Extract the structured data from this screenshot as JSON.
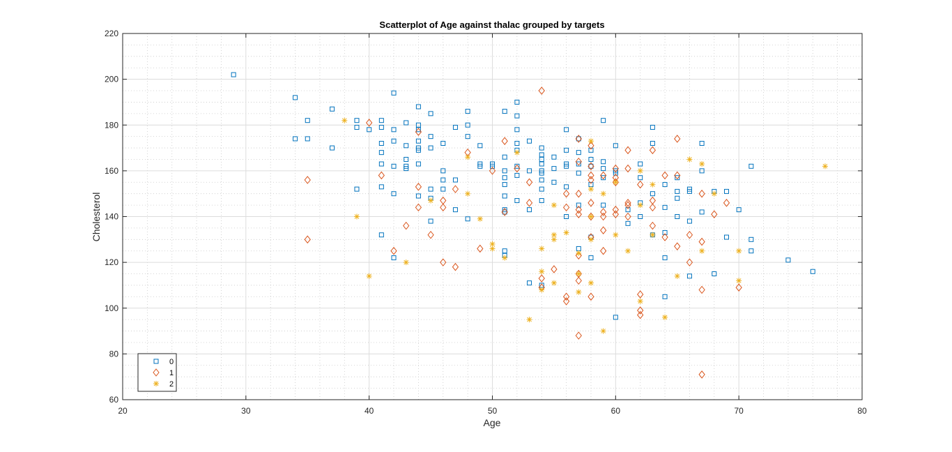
{
  "chart_data": {
    "type": "scatter",
    "title": "Scatterplot of Age against thalac grouped by targets",
    "xlabel": "Age",
    "ylabel": "Cholesterol",
    "xlim": [
      20,
      80
    ],
    "ylim": [
      60,
      220
    ],
    "xticks": [
      20,
      30,
      40,
      50,
      60,
      70,
      80
    ],
    "yticks": [
      60,
      80,
      100,
      120,
      140,
      160,
      180,
      200,
      220
    ],
    "grid": true,
    "minor_grid": true,
    "legend_position": "bottom-left",
    "series": [
      {
        "name": "0",
        "marker": "square",
        "color": "#0072BD",
        "points": [
          [
            29,
            202
          ],
          [
            34,
            192
          ],
          [
            34,
            174
          ],
          [
            35,
            182
          ],
          [
            35,
            174
          ],
          [
            37,
            187
          ],
          [
            37,
            170
          ],
          [
            39,
            182
          ],
          [
            39,
            179
          ],
          [
            39,
            152
          ],
          [
            40,
            178
          ],
          [
            41,
            182
          ],
          [
            41,
            179
          ],
          [
            41,
            172
          ],
          [
            41,
            168
          ],
          [
            41,
            163
          ],
          [
            41,
            153
          ],
          [
            41,
            132
          ],
          [
            42,
            194
          ],
          [
            42,
            178
          ],
          [
            42,
            173
          ],
          [
            42,
            162
          ],
          [
            42,
            150
          ],
          [
            42,
            122
          ],
          [
            43,
            181
          ],
          [
            43,
            171
          ],
          [
            43,
            165
          ],
          [
            43,
            162
          ],
          [
            43,
            161
          ],
          [
            44,
            188
          ],
          [
            44,
            180
          ],
          [
            44,
            178
          ],
          [
            44,
            173
          ],
          [
            44,
            170
          ],
          [
            44,
            169
          ],
          [
            44,
            163
          ],
          [
            44,
            149
          ],
          [
            45,
            185
          ],
          [
            45,
            175
          ],
          [
            45,
            170
          ],
          [
            45,
            152
          ],
          [
            45,
            148
          ],
          [
            45,
            138
          ],
          [
            46,
            172
          ],
          [
            46,
            160
          ],
          [
            46,
            156
          ],
          [
            46,
            152
          ],
          [
            47,
            179
          ],
          [
            47,
            156
          ],
          [
            47,
            143
          ],
          [
            48,
            186
          ],
          [
            48,
            180
          ],
          [
            48,
            175
          ],
          [
            48,
            139
          ],
          [
            49,
            171
          ],
          [
            49,
            163
          ],
          [
            49,
            162
          ],
          [
            50,
            163
          ],
          [
            50,
            162
          ],
          [
            51,
            186
          ],
          [
            51,
            166
          ],
          [
            51,
            160
          ],
          [
            51,
            157
          ],
          [
            51,
            154
          ],
          [
            51,
            149
          ],
          [
            51,
            143
          ],
          [
            51,
            142
          ],
          [
            51,
            125
          ],
          [
            51,
            123
          ],
          [
            52,
            190
          ],
          [
            52,
            184
          ],
          [
            52,
            178
          ],
          [
            52,
            172
          ],
          [
            52,
            169
          ],
          [
            52,
            162
          ],
          [
            52,
            158
          ],
          [
            52,
            147
          ],
          [
            53,
            173
          ],
          [
            53,
            160
          ],
          [
            53,
            143
          ],
          [
            53,
            111
          ],
          [
            54,
            170
          ],
          [
            54,
            167
          ],
          [
            54,
            165
          ],
          [
            54,
            163
          ],
          [
            54,
            160
          ],
          [
            54,
            159
          ],
          [
            54,
            156
          ],
          [
            54,
            152
          ],
          [
            54,
            147
          ],
          [
            54,
            110
          ],
          [
            55,
            166
          ],
          [
            55,
            161
          ],
          [
            55,
            155
          ],
          [
            56,
            178
          ],
          [
            56,
            169
          ],
          [
            56,
            163
          ],
          [
            56,
            162
          ],
          [
            56,
            153
          ],
          [
            56,
            140
          ],
          [
            57,
            174
          ],
          [
            57,
            168
          ],
          [
            57,
            163
          ],
          [
            57,
            159
          ],
          [
            57,
            145
          ],
          [
            57,
            126
          ],
          [
            58,
            169
          ],
          [
            58,
            165
          ],
          [
            58,
            162
          ],
          [
            58,
            154
          ],
          [
            58,
            131
          ],
          [
            58,
            122
          ],
          [
            59,
            182
          ],
          [
            59,
            164
          ],
          [
            59,
            161
          ],
          [
            59,
            157
          ],
          [
            59,
            145
          ],
          [
            60,
            171
          ],
          [
            60,
            160
          ],
          [
            60,
            159
          ],
          [
            60,
            96
          ],
          [
            61,
            143
          ],
          [
            61,
            137
          ],
          [
            62,
            163
          ],
          [
            62,
            157
          ],
          [
            62,
            146
          ],
          [
            62,
            140
          ],
          [
            63,
            179
          ],
          [
            63,
            172
          ],
          [
            63,
            150
          ],
          [
            63,
            132
          ],
          [
            64,
            154
          ],
          [
            64,
            144
          ],
          [
            64,
            133
          ],
          [
            64,
            122
          ],
          [
            64,
            105
          ],
          [
            65,
            157
          ],
          [
            65,
            151
          ],
          [
            65,
            148
          ],
          [
            65,
            140
          ],
          [
            66,
            152
          ],
          [
            66,
            151
          ],
          [
            66,
            138
          ],
          [
            66,
            114
          ],
          [
            67,
            172
          ],
          [
            67,
            160
          ],
          [
            67,
            142
          ],
          [
            68,
            151
          ],
          [
            68,
            115
          ],
          [
            69,
            151
          ],
          [
            69,
            131
          ],
          [
            70,
            143
          ],
          [
            71,
            162
          ],
          [
            71,
            130
          ],
          [
            71,
            125
          ],
          [
            74,
            121
          ],
          [
            76,
            116
          ]
        ]
      },
      {
        "name": "1",
        "marker": "diamond",
        "color": "#D95319",
        "points": [
          [
            35,
            156
          ],
          [
            35,
            130
          ],
          [
            40,
            181
          ],
          [
            41,
            158
          ],
          [
            42,
            125
          ],
          [
            43,
            136
          ],
          [
            44,
            177
          ],
          [
            44,
            153
          ],
          [
            44,
            144
          ],
          [
            45,
            132
          ],
          [
            46,
            147
          ],
          [
            46,
            144
          ],
          [
            46,
            120
          ],
          [
            47,
            152
          ],
          [
            47,
            118
          ],
          [
            48,
            168
          ],
          [
            49,
            126
          ],
          [
            50,
            160
          ],
          [
            51,
            173
          ],
          [
            51,
            142
          ],
          [
            52,
            161
          ],
          [
            53,
            155
          ],
          [
            53,
            146
          ],
          [
            54,
            195
          ],
          [
            54,
            113
          ],
          [
            54,
            109
          ],
          [
            55,
            117
          ],
          [
            56,
            150
          ],
          [
            56,
            144
          ],
          [
            56,
            105
          ],
          [
            56,
            103
          ],
          [
            57,
            174
          ],
          [
            57,
            164
          ],
          [
            57,
            150
          ],
          [
            57,
            143
          ],
          [
            57,
            141
          ],
          [
            57,
            123
          ],
          [
            57,
            115
          ],
          [
            57,
            112
          ],
          [
            57,
            88
          ],
          [
            58,
            171
          ],
          [
            58,
            162
          ],
          [
            58,
            158
          ],
          [
            58,
            156
          ],
          [
            58,
            146
          ],
          [
            58,
            140
          ],
          [
            58,
            131
          ],
          [
            58,
            105
          ],
          [
            59,
            158
          ],
          [
            59,
            142
          ],
          [
            59,
            140
          ],
          [
            59,
            134
          ],
          [
            59,
            125
          ],
          [
            60,
            161
          ],
          [
            60,
            157
          ],
          [
            60,
            155
          ],
          [
            60,
            143
          ],
          [
            60,
            141
          ],
          [
            61,
            169
          ],
          [
            61,
            161
          ],
          [
            61,
            146
          ],
          [
            61,
            145
          ],
          [
            61,
            140
          ],
          [
            62,
            154
          ],
          [
            62,
            106
          ],
          [
            62,
            99
          ],
          [
            62,
            97
          ],
          [
            63,
            169
          ],
          [
            63,
            147
          ],
          [
            63,
            144
          ],
          [
            63,
            136
          ],
          [
            64,
            158
          ],
          [
            64,
            131
          ],
          [
            65,
            174
          ],
          [
            65,
            158
          ],
          [
            65,
            127
          ],
          [
            66,
            132
          ],
          [
            66,
            120
          ],
          [
            67,
            150
          ],
          [
            67,
            129
          ],
          [
            67,
            108
          ],
          [
            67,
            71
          ],
          [
            68,
            141
          ],
          [
            69,
            146
          ],
          [
            70,
            109
          ]
        ]
      },
      {
        "name": "2",
        "marker": "asterisk",
        "color": "#EDB120",
        "points": [
          [
            38,
            182
          ],
          [
            39,
            140
          ],
          [
            40,
            114
          ],
          [
            43,
            120
          ],
          [
            45,
            147
          ],
          [
            48,
            166
          ],
          [
            48,
            150
          ],
          [
            49,
            139
          ],
          [
            50,
            128
          ],
          [
            50,
            126
          ],
          [
            51,
            122
          ],
          [
            52,
            168
          ],
          [
            53,
            95
          ],
          [
            54,
            126
          ],
          [
            54,
            116
          ],
          [
            54,
            108
          ],
          [
            55,
            145
          ],
          [
            55,
            132
          ],
          [
            55,
            130
          ],
          [
            55,
            111
          ],
          [
            56,
            133
          ],
          [
            57,
            124
          ],
          [
            57,
            115
          ],
          [
            57,
            107
          ],
          [
            58,
            173
          ],
          [
            58,
            152
          ],
          [
            58,
            140
          ],
          [
            58,
            130
          ],
          [
            58,
            111
          ],
          [
            59,
            150
          ],
          [
            59,
            90
          ],
          [
            60,
            155
          ],
          [
            60,
            132
          ],
          [
            61,
            125
          ],
          [
            62,
            160
          ],
          [
            62,
            145
          ],
          [
            62,
            103
          ],
          [
            63,
            154
          ],
          [
            63,
            132
          ],
          [
            64,
            96
          ],
          [
            65,
            114
          ],
          [
            66,
            165
          ],
          [
            67,
            163
          ],
          [
            67,
            125
          ],
          [
            68,
            150
          ],
          [
            70,
            125
          ],
          [
            70,
            112
          ],
          [
            77,
            162
          ]
        ]
      }
    ]
  }
}
